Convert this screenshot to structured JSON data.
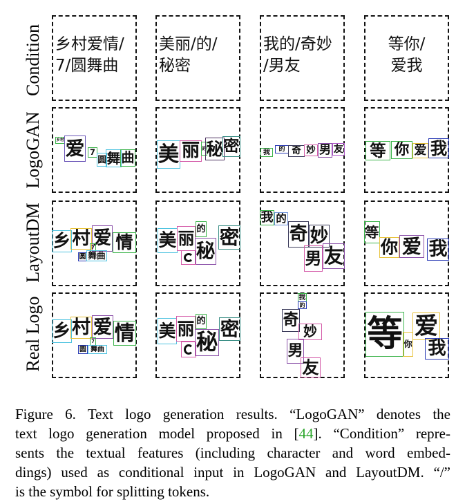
{
  "row_labels": {
    "condition": "Condition",
    "logogan": "LogoGAN",
    "layoutdm": "LayoutDM",
    "real": "Real Logo"
  },
  "conditions": [
    [
      "乡村爱情/",
      "7/圆舞曲"
    ],
    [
      "美丽/的/",
      "秘密"
    ],
    [
      "我的/奇妙",
      "/男友"
    ],
    [
      "等你/",
      "爱我"
    ]
  ],
  "logos": {
    "logogan": [
      [
        {
          "text": "乡村",
          "color": "#3cb44b"
        },
        {
          "text": "爱",
          "color": "#6a55b8"
        },
        {
          "text": "7",
          "color": "#3cb44b"
        },
        {
          "text": "圆",
          "color": "#4fc3e0"
        },
        {
          "text": "舞",
          "color": "#4fc3e0"
        },
        {
          "text": "曲",
          "color": "#3cb44b"
        }
      ],
      [
        {
          "text": "美",
          "color": "#4fc3e0"
        },
        {
          "text": "丽",
          "color": "#d45aa8"
        },
        {
          "text": "的",
          "color": "#3cb44b"
        },
        {
          "text": "秘",
          "color": "#4a2f5e"
        },
        {
          "text": "密",
          "color": "#3b8f86"
        }
      ],
      [
        {
          "text": "我",
          "color": "#3cb44b"
        },
        {
          "text": "的",
          "color": "#2a3bb5"
        },
        {
          "text": "奇",
          "color": "#3a3a5a"
        },
        {
          "text": "妙",
          "color": "#d45aa8"
        },
        {
          "text": "男",
          "color": "#8a4fa8"
        },
        {
          "text": "友",
          "color": "#b05ac8"
        }
      ],
      [
        {
          "text": "等",
          "color": "#3cb44b"
        },
        {
          "text": "你",
          "color": "#3cb44b"
        },
        {
          "text": "爱",
          "color": "#e8c23a"
        },
        {
          "text": "我",
          "color": "#2a3bb5"
        }
      ]
    ],
    "layoutdm": [
      [
        {
          "text": "乡",
          "color": "#4fc3e0"
        },
        {
          "text": "村",
          "color": "#e8c23a"
        },
        {
          "text": "爱",
          "color": "#8a4fa8"
        },
        {
          "text": "情",
          "color": "#3cb44b"
        },
        {
          "text": "7",
          "color": "#3cb44b"
        },
        {
          "text": "圆",
          "color": "#2a3bb5"
        },
        {
          "text": "舞曲",
          "color": "#4fc3e0"
        }
      ],
      [
        {
          "text": "美",
          "color": "#4fc3e0"
        },
        {
          "text": "丽",
          "color": "#d45aa8"
        },
        {
          "text": "的",
          "color": "#3cb44b"
        },
        {
          "text": "秘",
          "color": "#8a4fa8"
        },
        {
          "color": "#d45aa8"
        },
        {
          "text": "密",
          "color": "#3b8f86"
        }
      ],
      [
        {
          "text": "我",
          "color": "#3cb44b"
        },
        {
          "text": "的",
          "color": "#6a8fd8"
        },
        {
          "text": "奇",
          "color": "#3a3a5a"
        },
        {
          "text": "妙",
          "color": "#3a3a5a"
        },
        {
          "text": "男",
          "color": "#d45aa8"
        },
        {
          "text": "友",
          "color": "#8a4fa8"
        }
      ],
      [
        {
          "text": "等",
          "color": "#3cb44b"
        },
        {
          "text": "你",
          "color": "#e8c23a"
        },
        {
          "text": "爱",
          "color": "#8a4fa8"
        },
        {
          "text": "我",
          "color": "#2a3bb5"
        }
      ]
    ],
    "real": [
      [
        {
          "text": "乡",
          "color": "#4fc3e0"
        },
        {
          "text": "村",
          "color": "#e8c23a"
        },
        {
          "text": "爱",
          "color": "#8a4fa8"
        },
        {
          "text": "情",
          "color": "#3cb44b"
        },
        {
          "text": "7",
          "color": "#3cb44b"
        },
        {
          "text": "圆",
          "color": "#2a3bb5"
        },
        {
          "text": "舞曲",
          "color": "#4fc3e0"
        }
      ],
      [
        {
          "text": "美",
          "color": "#4fc3e0"
        },
        {
          "text": "丽",
          "color": "#d45aa8"
        },
        {
          "text": "的",
          "color": "#3cb44b"
        },
        {
          "text": "秘",
          "color": "#8a4fa8"
        },
        {
          "color": "#d45aa8"
        },
        {
          "text": "密",
          "color": "#3b8f86"
        }
      ],
      [
        {
          "text": "我",
          "color": "#3cb44b"
        },
        {
          "text": "的",
          "color": "#2a3bb5"
        },
        {
          "text": "奇",
          "color": "#3a3a5a"
        },
        {
          "text": "妙",
          "color": "#d45aa8"
        },
        {
          "text": "男",
          "color": "#8a4fa8"
        },
        {
          "text": "友",
          "color": "#d45aa8"
        }
      ],
      [
        {
          "text": "等",
          "color": "#3cb44b"
        },
        {
          "text": "你",
          "color": "#e8c23a"
        },
        {
          "text": "爱",
          "color": "#e8c23a"
        },
        {
          "text": "我",
          "color": "#2a3bb5"
        }
      ]
    ]
  },
  "caption": {
    "line1": "Figure 6. Text logo generation results. “LogoGAN” denotes the",
    "line2_pre": "text logo generation model proposed in [",
    "citation": "44",
    "line2_post": "]. “Condition” repre-",
    "line3": "sents the textual features (including character and word embed-",
    "line4": "dings) used as conditional input in LogoGAN and LayoutDM. “/”",
    "line5": "is the symbol for splitting tokens.",
    "citation_color": "#2aa52a"
  }
}
